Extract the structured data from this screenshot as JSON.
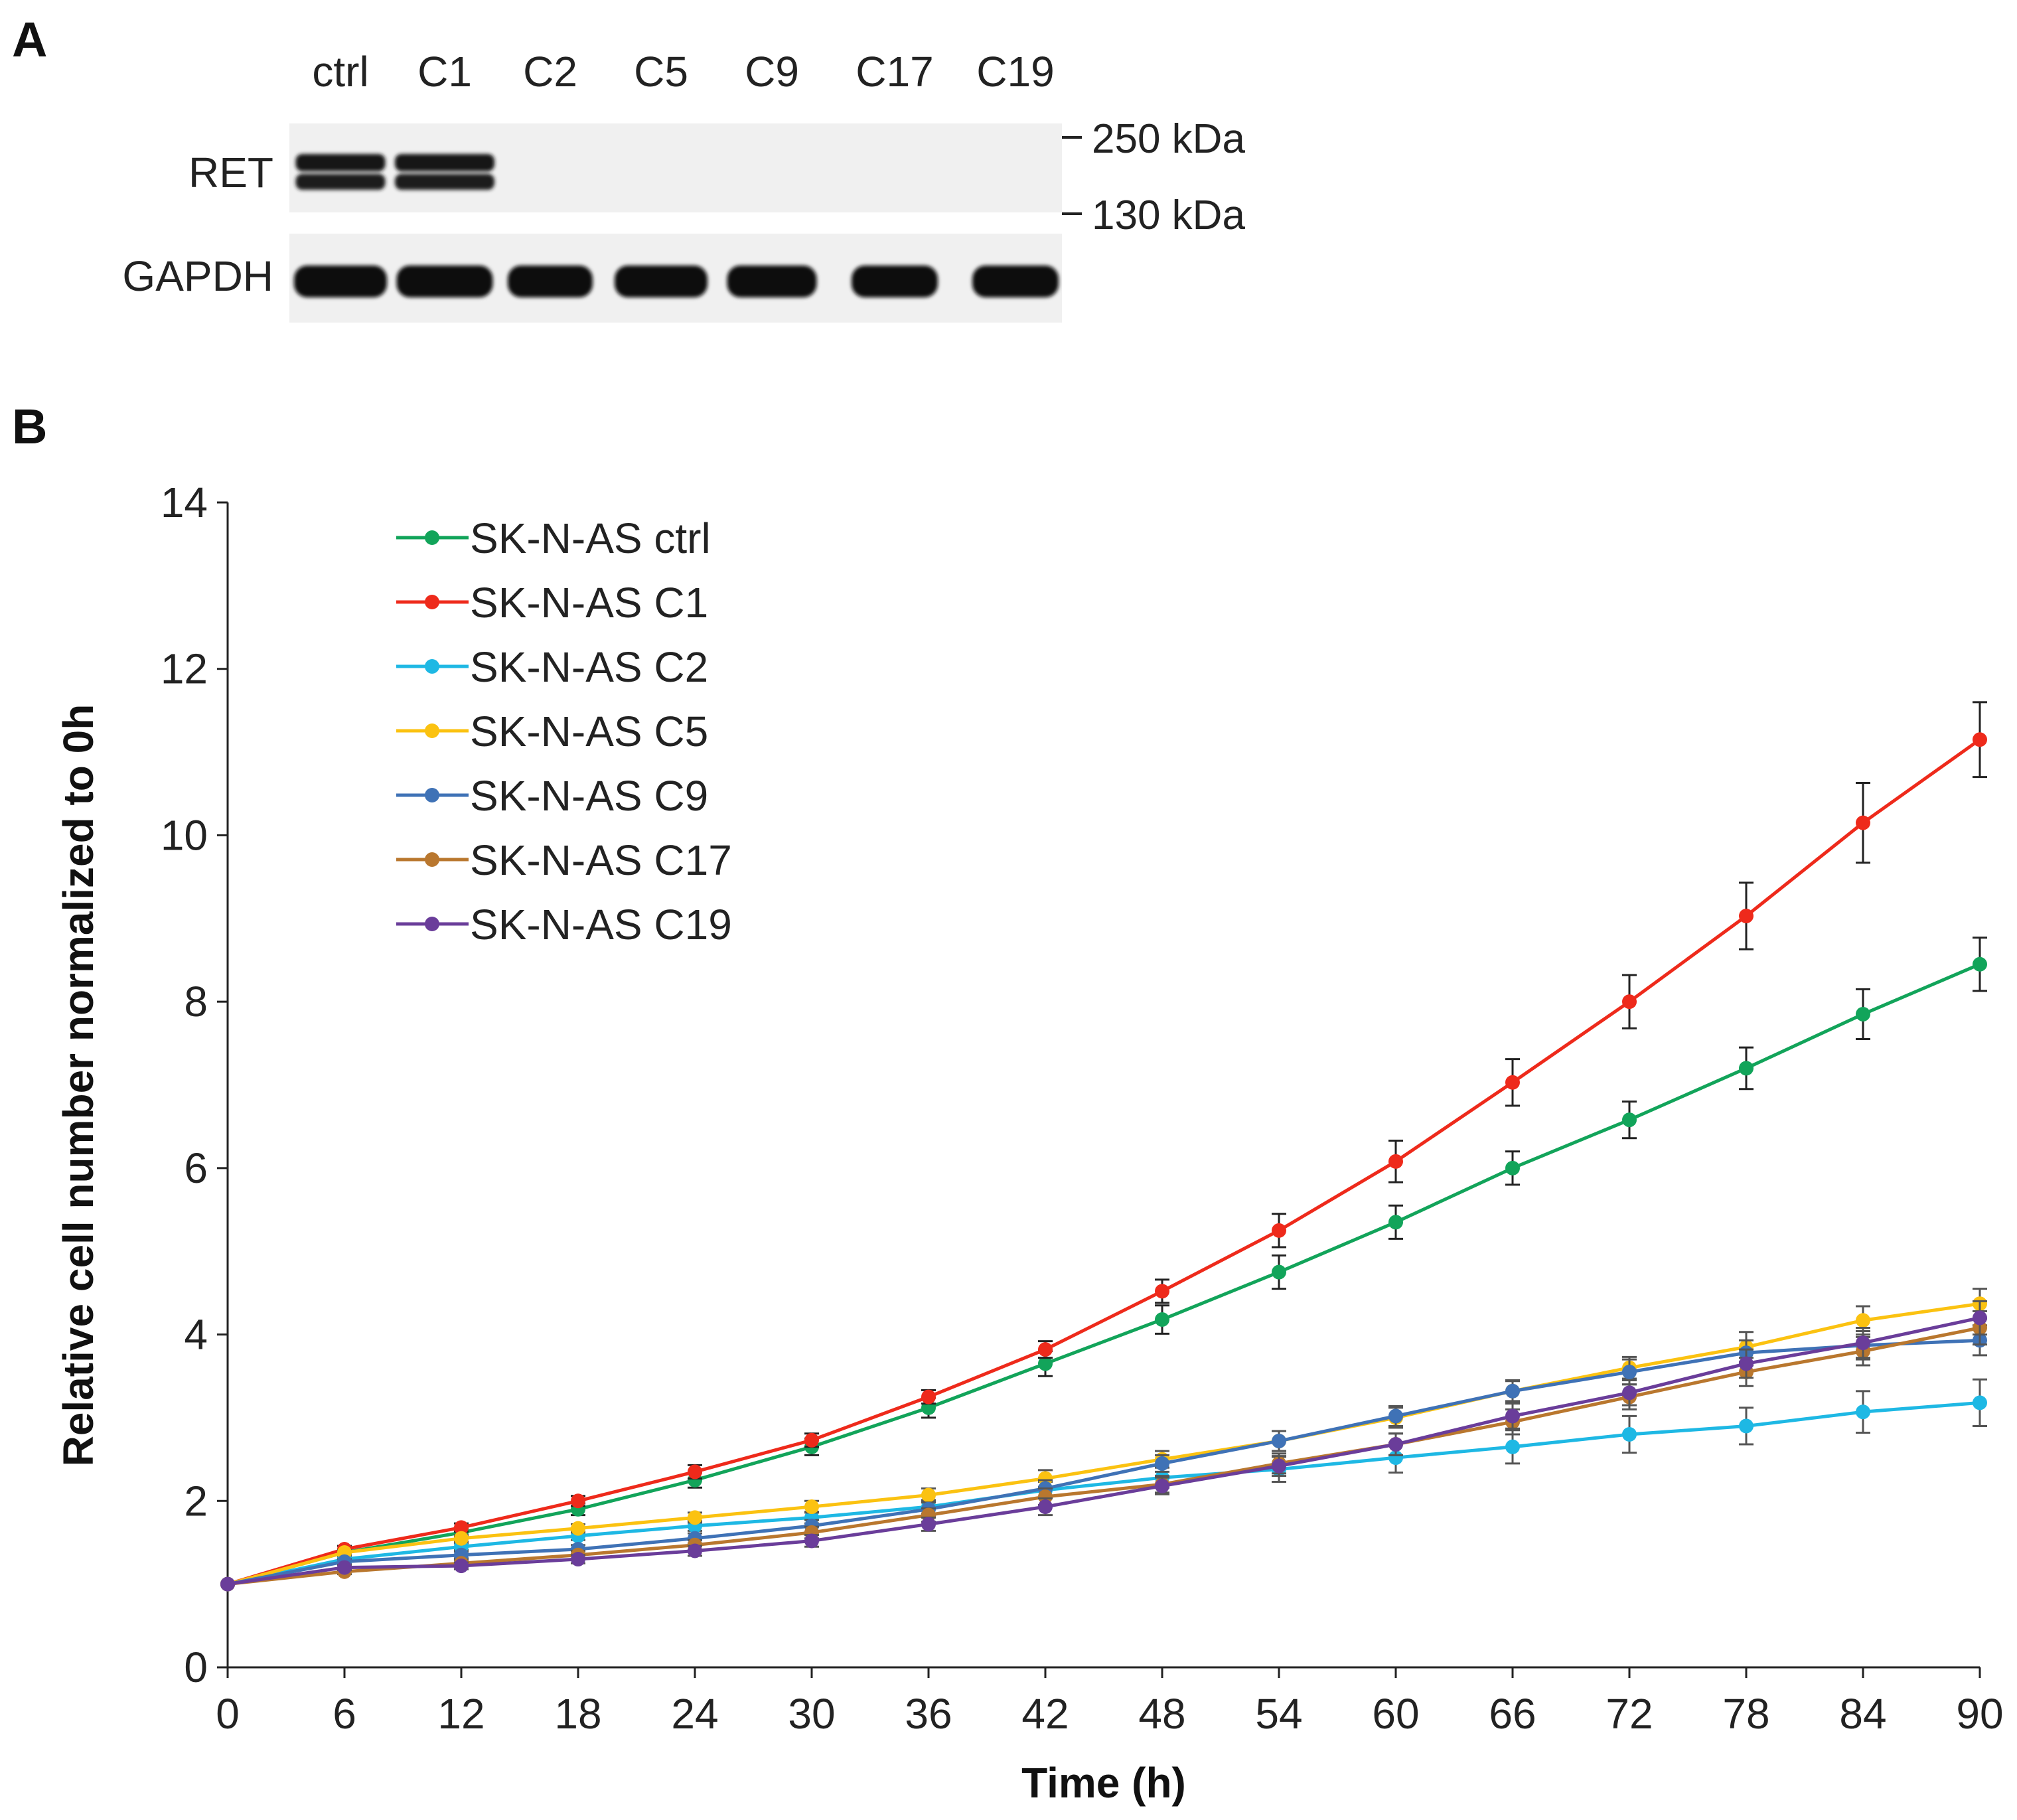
{
  "panel_a": {
    "label": "A",
    "lanes": [
      "ctrl",
      "C1",
      "C2",
      "C5",
      "C9",
      "C17",
      "C19"
    ],
    "rows": [
      {
        "label": "RET",
        "band_intensity": [
          1,
          1,
          0,
          0,
          0,
          0,
          0
        ]
      },
      {
        "label": "GAPDH",
        "band_intensity": [
          1,
          1,
          1,
          1,
          1,
          1,
          1
        ]
      }
    ],
    "markers": [
      "250 kDa",
      "130 kDa"
    ]
  },
  "panel_b": {
    "label": "B"
  },
  "chart_data": {
    "type": "line",
    "title": "",
    "xlabel": "Time (h)",
    "ylabel": "Relative cell number normalized to 0h",
    "x": [
      0,
      6,
      12,
      18,
      24,
      30,
      36,
      42,
      48,
      54,
      60,
      66,
      72,
      78,
      84,
      90
    ],
    "xticks": [
      "0",
      "6",
      "12",
      "18",
      "24",
      "30",
      "36",
      "42",
      "48",
      "54",
      "60",
      "66",
      "72",
      "78",
      "84",
      "90"
    ],
    "yticks": [
      "0",
      "2",
      "4",
      "6",
      "8",
      "10",
      "12",
      "14"
    ],
    "xlim": [
      0,
      90
    ],
    "ylim": [
      0,
      14
    ],
    "grid": false,
    "legend_position": "top-left",
    "series": [
      {
        "name": "SK-N-AS ctrl",
        "color": "#12a45a",
        "values": [
          1,
          1.38,
          1.62,
          1.9,
          2.25,
          2.65,
          3.12,
          3.65,
          4.18,
          4.75,
          5.35,
          6.0,
          6.58,
          7.2,
          7.85,
          8.45
        ],
        "errors": [
          0,
          0.04,
          0.05,
          0.07,
          0.09,
          0.1,
          0.12,
          0.15,
          0.17,
          0.2,
          0.2,
          0.2,
          0.22,
          0.25,
          0.3,
          0.32
        ]
      },
      {
        "name": "SK-N-AS C1",
        "color": "#ee2a1b",
        "values": [
          1,
          1.42,
          1.68,
          2.0,
          2.35,
          2.73,
          3.25,
          3.82,
          4.52,
          5.25,
          6.08,
          7.03,
          8.0,
          9.03,
          10.15,
          11.15
        ],
        "errors": [
          0,
          0.04,
          0.05,
          0.06,
          0.08,
          0.08,
          0.08,
          0.1,
          0.14,
          0.2,
          0.25,
          0.28,
          0.32,
          0.4,
          0.48,
          0.45
        ]
      },
      {
        "name": "SK-N-AS C2",
        "color": "#1eb8e4",
        "values": [
          1,
          1.3,
          1.45,
          1.58,
          1.7,
          1.8,
          1.93,
          2.13,
          2.28,
          2.38,
          2.52,
          2.65,
          2.8,
          2.9,
          3.07,
          3.18
        ],
        "errors": [
          0,
          0.03,
          0.04,
          0.05,
          0.06,
          0.07,
          0.08,
          0.1,
          0.12,
          0.15,
          0.18,
          0.2,
          0.22,
          0.22,
          0.25,
          0.28
        ]
      },
      {
        "name": "SK-N-AS C5",
        "color": "#fbc211",
        "values": [
          1,
          1.38,
          1.55,
          1.67,
          1.8,
          1.93,
          2.07,
          2.27,
          2.5,
          2.72,
          3.0,
          3.32,
          3.6,
          3.85,
          4.17,
          4.37
        ],
        "errors": [
          0,
          0.03,
          0.04,
          0.05,
          0.06,
          0.07,
          0.08,
          0.1,
          0.1,
          0.12,
          0.12,
          0.12,
          0.13,
          0.18,
          0.17,
          0.18
        ]
      },
      {
        "name": "SK-N-AS C9",
        "color": "#3f72b6",
        "values": [
          1,
          1.27,
          1.35,
          1.42,
          1.55,
          1.7,
          1.9,
          2.15,
          2.45,
          2.72,
          3.02,
          3.32,
          3.55,
          3.78,
          3.87,
          3.93
        ],
        "errors": [
          0,
          0.03,
          0.04,
          0.05,
          0.06,
          0.07,
          0.08,
          0.1,
          0.1,
          0.12,
          0.12,
          0.13,
          0.15,
          0.15,
          0.17,
          0.18
        ]
      },
      {
        "name": "SK-N-AS C17",
        "color": "#b9772e",
        "values": [
          1,
          1.15,
          1.25,
          1.35,
          1.47,
          1.62,
          1.83,
          2.05,
          2.2,
          2.45,
          2.68,
          2.95,
          3.25,
          3.55,
          3.8,
          4.08
        ],
        "errors": [
          0,
          0.03,
          0.04,
          0.05,
          0.06,
          0.07,
          0.08,
          0.1,
          0.1,
          0.12,
          0.13,
          0.15,
          0.15,
          0.17,
          0.17,
          0.2
        ]
      },
      {
        "name": "SK-N-AS C19",
        "color": "#6a3d9a",
        "values": [
          1,
          1.2,
          1.22,
          1.3,
          1.4,
          1.52,
          1.72,
          1.93,
          2.18,
          2.42,
          2.68,
          3.02,
          3.3,
          3.65,
          3.9,
          4.2
        ],
        "errors": [
          0,
          0.03,
          0.04,
          0.05,
          0.06,
          0.07,
          0.08,
          0.1,
          0.1,
          0.12,
          0.13,
          0.15,
          0.15,
          0.17,
          0.18,
          0.2
        ]
      }
    ]
  }
}
